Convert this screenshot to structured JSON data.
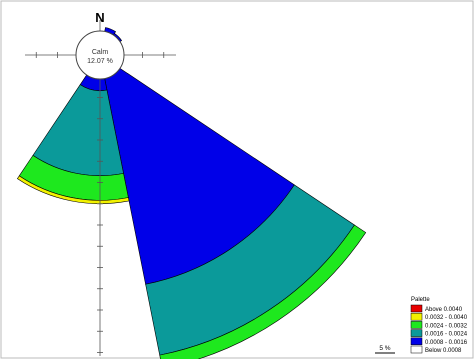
{
  "chart_data": {
    "type": "wind-rose",
    "north_label": "N",
    "calm": {
      "label": "Calm",
      "value_text": "12.07 %",
      "percent": 12.07
    },
    "scale_label": "5 %",
    "direction_order": [
      "N",
      "NNE",
      "NE",
      "ENE",
      "E",
      "ESE",
      "SE",
      "SSE",
      "S",
      "SSW",
      "SW",
      "WSW",
      "W",
      "WNW",
      "NW",
      "NNW"
    ],
    "classes": [
      "0.0008 - 0.0016",
      "0.0016 - 0.0024",
      "0.0024 - 0.0032",
      "0.0032 - 0.0040",
      "Above 0.0040"
    ],
    "class_colors": [
      "#0000e8",
      "#0b9a9a",
      "#1ee81e",
      "#f2f200",
      "#e80000"
    ],
    "series": [
      {
        "direction": "NNE",
        "cumulative_percent": [
          3.3
        ]
      },
      {
        "direction": "NE",
        "cumulative_percent": [
          2.5
        ]
      },
      {
        "direction": "SE",
        "cumulative_percent": [
          27.5,
          36.0,
          37.6
        ]
      },
      {
        "direction": "SSE",
        "cumulative_percent": [
          27.5,
          36.0,
          37.6
        ]
      },
      {
        "direction": "S",
        "cumulative_percent": [
          4.2,
          14.2,
          17.1,
          17.5
        ]
      },
      {
        "direction": "SSW",
        "cumulative_percent": [
          4.2,
          14.2,
          17.1,
          17.5
        ]
      }
    ],
    "legend": {
      "title": "Palette",
      "items": [
        {
          "label": "Above  0.0040",
          "color": "#e80000"
        },
        {
          "label": "0.0032 - 0.0040",
          "color": "#f2f200"
        },
        {
          "label": "0.0024 - 0.0032",
          "color": "#1ee81e"
        },
        {
          "label": "0.0016 - 0.0024",
          "color": "#0b9a9a"
        },
        {
          "label": "0.0008 - 0.0016",
          "color": "#0000e8"
        },
        {
          "label": "Below   0.0008",
          "color": "#ffffff"
        }
      ]
    }
  }
}
